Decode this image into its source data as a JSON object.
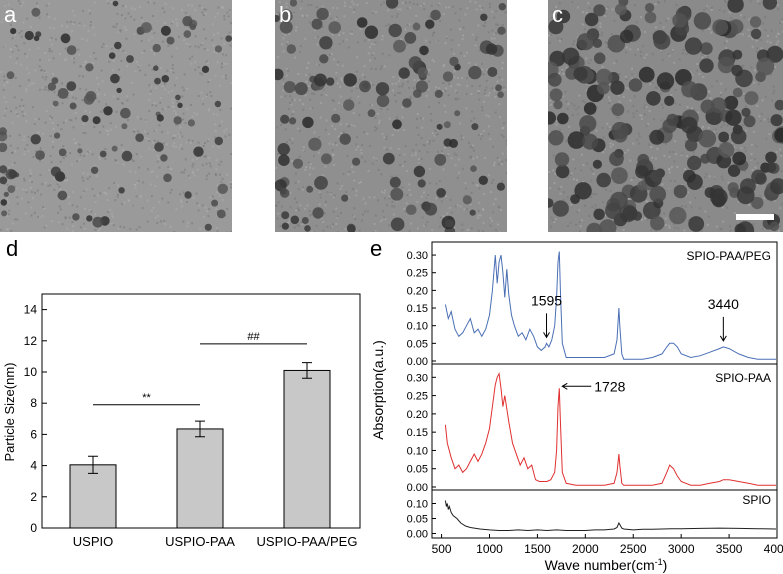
{
  "panels": {
    "a": "a",
    "b": "b",
    "c": "c",
    "d": "d",
    "e": "e"
  },
  "chart_data": [
    {
      "type": "bar",
      "panel": "d",
      "categories": [
        "USPIO",
        "USPIO-PAA",
        "USPIO-PAA/PEG"
      ],
      "values": [
        4.05,
        6.35,
        10.1
      ],
      "errors": [
        0.55,
        0.5,
        0.5
      ],
      "ylabel": "Particle Size(nm)",
      "ylim": [
        0,
        15
      ],
      "yticks": [
        "0",
        "2",
        "4",
        "6",
        "8",
        "10",
        "12",
        "14"
      ],
      "bar_color": "#c8c8c8",
      "annotations": [
        {
          "label": "**",
          "from": "USPIO",
          "to": "USPIO-PAA",
          "y": 7.9
        },
        {
          "label": "##",
          "from": "USPIO-PAA",
          "to": "USPIO-PAA/PEG",
          "y": 11.8
        }
      ]
    },
    {
      "type": "line",
      "panel": "e",
      "xlabel": "Wave number(cm",
      "xlabel_sup": "-1",
      "xlabel_end": ")",
      "ylabel": "Absorption(a.u.)",
      "xlim": [
        400,
        4000
      ],
      "xticks": [
        "500",
        "1000",
        "1500",
        "2000",
        "2500",
        "3000",
        "3500",
        "4000"
      ],
      "series": [
        {
          "name": "SPIO-PAA/PEG",
          "color": "#4a6fb5",
          "ylim": [
            0,
            0.32
          ],
          "yticks": [
            "0.00",
            "0.05",
            "0.10",
            "0.15",
            "0.20",
            "0.25",
            "0.30"
          ],
          "x": [
            540,
            570,
            600,
            640,
            680,
            720,
            760,
            800,
            840,
            880,
            920,
            960,
            1000,
            1030,
            1060,
            1080,
            1100,
            1120,
            1140,
            1160,
            1180,
            1200,
            1230,
            1260,
            1300,
            1340,
            1380,
            1420,
            1460,
            1500,
            1540,
            1580,
            1595,
            1620,
            1650,
            1680,
            1700,
            1715,
            1728,
            1740,
            1760,
            1800,
            1900,
            2000,
            2100,
            2200,
            2300,
            2330,
            2350,
            2360,
            2380,
            2400,
            2500,
            2600,
            2700,
            2800,
            2850,
            2880,
            2920,
            2960,
            3000,
            3100,
            3200,
            3300,
            3400,
            3440,
            3500,
            3600,
            3700,
            3800,
            3900,
            3990
          ],
          "y": [
            0.16,
            0.12,
            0.14,
            0.09,
            0.07,
            0.08,
            0.1,
            0.12,
            0.08,
            0.09,
            0.07,
            0.09,
            0.13,
            0.2,
            0.3,
            0.22,
            0.28,
            0.3,
            0.25,
            0.18,
            0.26,
            0.19,
            0.13,
            0.1,
            0.07,
            0.08,
            0.06,
            0.09,
            0.07,
            0.04,
            0.03,
            0.04,
            0.05,
            0.04,
            0.06,
            0.1,
            0.18,
            0.28,
            0.31,
            0.2,
            0.05,
            0.01,
            0.01,
            0.01,
            0.01,
            0.01,
            0.02,
            0.06,
            0.15,
            0.1,
            0.02,
            0.005,
            0.005,
            0.005,
            0.01,
            0.02,
            0.04,
            0.05,
            0.05,
            0.04,
            0.02,
            0.01,
            0.015,
            0.025,
            0.035,
            0.04,
            0.035,
            0.02,
            0.01,
            0.005,
            0.005,
            0.005
          ],
          "annotations": [
            {
              "label": "1595",
              "x": 1595
            },
            {
              "label": "3440",
              "x": 3440
            }
          ]
        },
        {
          "name": "SPIO-PAA",
          "color": "#e03030",
          "ylim": [
            0,
            0.32
          ],
          "yticks": [
            "0.00",
            "0.05",
            "0.10",
            "0.15",
            "0.20",
            "0.25",
            "0.30"
          ],
          "x": [
            540,
            560,
            600,
            640,
            680,
            720,
            760,
            800,
            840,
            880,
            920,
            960,
            1000,
            1030,
            1060,
            1080,
            1100,
            1120,
            1140,
            1160,
            1200,
            1240,
            1280,
            1320,
            1360,
            1400,
            1440,
            1480,
            1520,
            1560,
            1600,
            1640,
            1680,
            1700,
            1715,
            1728,
            1740,
            1760,
            1800,
            1900,
            2000,
            2100,
            2200,
            2300,
            2330,
            2350,
            2360,
            2380,
            2400,
            2500,
            2600,
            2700,
            2800,
            2850,
            2880,
            2920,
            2960,
            3000,
            3100,
            3200,
            3300,
            3400,
            3440,
            3500,
            3600,
            3700,
            3800,
            3900,
            3990
          ],
          "y": [
            0.17,
            0.12,
            0.08,
            0.05,
            0.06,
            0.04,
            0.05,
            0.07,
            0.09,
            0.07,
            0.09,
            0.12,
            0.16,
            0.22,
            0.28,
            0.3,
            0.31,
            0.27,
            0.22,
            0.25,
            0.18,
            0.12,
            0.09,
            0.06,
            0.08,
            0.05,
            0.06,
            0.02,
            0.015,
            0.015,
            0.015,
            0.02,
            0.04,
            0.1,
            0.22,
            0.27,
            0.18,
            0.04,
            0.01,
            0.005,
            0.005,
            0.005,
            0.005,
            0.01,
            0.04,
            0.09,
            0.06,
            0.01,
            0.005,
            0.005,
            0.005,
            0.005,
            0.01,
            0.04,
            0.06,
            0.05,
            0.03,
            0.015,
            0.005,
            0.005,
            0.01,
            0.015,
            0.02,
            0.02,
            0.015,
            0.01,
            0.005,
            0.005,
            0.005
          ],
          "annotations": [
            {
              "label": "1728",
              "x": 1728
            }
          ]
        },
        {
          "name": "SPIO",
          "color": "#202020",
          "ylim": [
            -0.005,
            0.125
          ],
          "yticks": [
            "0.00",
            "0.05",
            "0.10"
          ],
          "x": [
            540,
            550,
            560,
            570,
            580,
            600,
            620,
            660,
            700,
            750,
            800,
            900,
            1000,
            1100,
            1200,
            1300,
            1400,
            1500,
            1600,
            1700,
            1800,
            1900,
            2000,
            2100,
            2200,
            2300,
            2330,
            2350,
            2360,
            2380,
            2400,
            2500,
            2600,
            2700,
            2800,
            2900,
            3000,
            3200,
            3400,
            3600,
            3800,
            3990
          ],
          "y": [
            0.11,
            0.09,
            0.1,
            0.08,
            0.09,
            0.07,
            0.06,
            0.05,
            0.035,
            0.025,
            0.02,
            0.015,
            0.012,
            0.01,
            0.01,
            0.012,
            0.01,
            0.012,
            0.01,
            0.012,
            0.01,
            0.01,
            0.01,
            0.012,
            0.012,
            0.015,
            0.02,
            0.035,
            0.03,
            0.018,
            0.015,
            0.012,
            0.014,
            0.014,
            0.015,
            0.016,
            0.016,
            0.017,
            0.018,
            0.017,
            0.016,
            0.015
          ],
          "annotations": []
        }
      ]
    }
  ]
}
